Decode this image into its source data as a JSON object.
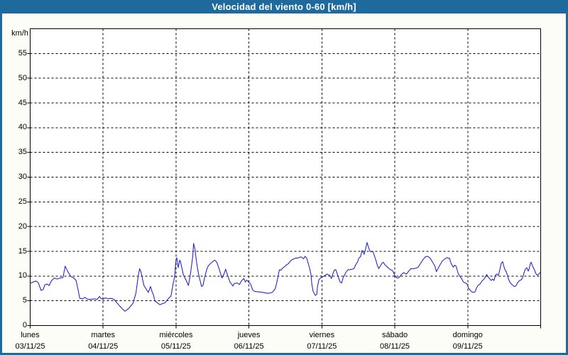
{
  "window": {
    "title": "Velocidad del viento 0-60 [km/h]"
  },
  "colors": {
    "title_bar": "#1E6A9C",
    "frame": "#1E6A9C",
    "title_text": "#FFFFFF",
    "content_bg": "#FBFDF6",
    "plot_bg": "#FFFFFF",
    "grid": "#000000",
    "axis_text": "#000000",
    "line": "#2828C8"
  },
  "chart_data": {
    "type": "line",
    "title": "Velocidad del viento 0-60 [km/h]",
    "xlabel": "",
    "ylabel": "km/h",
    "ylim": [
      0,
      60
    ],
    "yticks": [
      0,
      5,
      10,
      15,
      20,
      25,
      30,
      35,
      40,
      45,
      50,
      55
    ],
    "grid": "dashed",
    "legend_position": "none",
    "x_axis_days": [
      {
        "name": "lunes",
        "date": "03/11/25"
      },
      {
        "name": "martes",
        "date": "04/11/25"
      },
      {
        "name": "miércoles",
        "date": "05/11/25"
      },
      {
        "name": "jueves",
        "date": "06/11/25"
      },
      {
        "name": "viernes",
        "date": "07/11/25"
      },
      {
        "name": "sábado",
        "date": "08/11/25"
      },
      {
        "name": "domingo",
        "date": "09/11/25"
      }
    ],
    "series": [
      {
        "name": "velocidad del viento [km/h]",
        "x_unit": "days_from_start",
        "points": [
          [
            0.0,
            8.5
          ],
          [
            0.04,
            8.8
          ],
          [
            0.08,
            9.0
          ],
          [
            0.11,
            8.7
          ],
          [
            0.15,
            7.1
          ],
          [
            0.18,
            7.3
          ],
          [
            0.2,
            8.2
          ],
          [
            0.23,
            8.4
          ],
          [
            0.26,
            8.1
          ],
          [
            0.29,
            9.0
          ],
          [
            0.33,
            9.6
          ],
          [
            0.37,
            9.4
          ],
          [
            0.41,
            9.6
          ],
          [
            0.45,
            9.7
          ],
          [
            0.48,
            12.0
          ],
          [
            0.52,
            10.8
          ],
          [
            0.56,
            9.9
          ],
          [
            0.6,
            9.6
          ],
          [
            0.63,
            9.1
          ],
          [
            0.66,
            7.0
          ],
          [
            0.68,
            5.5
          ],
          [
            0.72,
            5.4
          ],
          [
            0.75,
            5.7
          ],
          [
            0.79,
            5.3
          ],
          [
            0.84,
            5.3
          ],
          [
            0.88,
            5.4
          ],
          [
            0.92,
            5.3
          ],
          [
            0.95,
            5.9
          ],
          [
            0.97,
            5.5
          ],
          [
            1.0,
            5.3
          ],
          [
            1.03,
            5.6
          ],
          [
            1.07,
            5.4
          ],
          [
            1.11,
            5.5
          ],
          [
            1.15,
            5.3
          ],
          [
            1.19,
            4.6
          ],
          [
            1.23,
            3.9
          ],
          [
            1.27,
            3.3
          ],
          [
            1.3,
            2.9
          ],
          [
            1.32,
            3.1
          ],
          [
            1.36,
            3.6
          ],
          [
            1.41,
            4.5
          ],
          [
            1.45,
            6.5
          ],
          [
            1.48,
            9.8
          ],
          [
            1.5,
            11.5
          ],
          [
            1.52,
            10.8
          ],
          [
            1.56,
            8.1
          ],
          [
            1.59,
            7.4
          ],
          [
            1.62,
            6.7
          ],
          [
            1.65,
            7.9
          ],
          [
            1.67,
            6.9
          ],
          [
            1.69,
            6.2
          ],
          [
            1.71,
            5.0
          ],
          [
            1.75,
            4.5
          ],
          [
            1.78,
            4.2
          ],
          [
            1.81,
            4.4
          ],
          [
            1.85,
            4.6
          ],
          [
            1.88,
            5.2
          ],
          [
            1.91,
            5.7
          ],
          [
            1.93,
            5.9
          ],
          [
            1.96,
            8.4
          ],
          [
            1.98,
            9.8
          ],
          [
            2.0,
            13.4
          ],
          [
            2.01,
            13.7
          ],
          [
            2.03,
            11.7
          ],
          [
            2.05,
            13.2
          ],
          [
            2.06,
            13.0
          ],
          [
            2.1,
            10.3
          ],
          [
            2.14,
            9.1
          ],
          [
            2.17,
            8.1
          ],
          [
            2.2,
            10.7
          ],
          [
            2.23,
            14.1
          ],
          [
            2.24,
            16.6
          ],
          [
            2.26,
            15.5
          ],
          [
            2.27,
            14.1
          ],
          [
            2.29,
            12.0
          ],
          [
            2.31,
            10.3
          ],
          [
            2.33,
            9.1
          ],
          [
            2.35,
            7.9
          ],
          [
            2.37,
            8.1
          ],
          [
            2.39,
            9.6
          ],
          [
            2.42,
            11.3
          ],
          [
            2.44,
            12.0
          ],
          [
            2.47,
            12.5
          ],
          [
            2.5,
            12.9
          ],
          [
            2.53,
            13.2
          ],
          [
            2.56,
            12.8
          ],
          [
            2.59,
            11.5
          ],
          [
            2.63,
            9.6
          ],
          [
            2.66,
            10.5
          ],
          [
            2.68,
            11.4
          ],
          [
            2.71,
            10.0
          ],
          [
            2.74,
            8.8
          ],
          [
            2.78,
            8.0
          ],
          [
            2.8,
            8.5
          ],
          [
            2.84,
            8.6
          ],
          [
            2.87,
            8.3
          ],
          [
            2.9,
            9.1
          ],
          [
            2.93,
            9.5
          ],
          [
            2.95,
            8.8
          ],
          [
            2.97,
            9.2
          ],
          [
            3.0,
            8.7
          ],
          [
            3.02,
            8.5
          ],
          [
            3.05,
            7.2
          ],
          [
            3.08,
            6.9
          ],
          [
            3.13,
            6.8
          ],
          [
            3.19,
            6.7
          ],
          [
            3.26,
            6.5
          ],
          [
            3.32,
            6.7
          ],
          [
            3.36,
            7.4
          ],
          [
            3.38,
            8.6
          ],
          [
            3.41,
            10.8
          ],
          [
            3.42,
            11.3
          ],
          [
            3.44,
            11.2
          ],
          [
            3.46,
            11.6
          ],
          [
            3.48,
            11.8
          ],
          [
            3.51,
            12.2
          ],
          [
            3.54,
            12.5
          ],
          [
            3.58,
            13.2
          ],
          [
            3.63,
            13.6
          ],
          [
            3.68,
            13.7
          ],
          [
            3.71,
            13.9
          ],
          [
            3.75,
            13.5
          ],
          [
            3.77,
            14.0
          ],
          [
            3.79,
            13.7
          ],
          [
            3.81,
            12.7
          ],
          [
            3.83,
            11.7
          ],
          [
            3.85,
            10.3
          ],
          [
            3.86,
            8.6
          ],
          [
            3.88,
            6.9
          ],
          [
            3.91,
            6.1
          ],
          [
            3.93,
            6.3
          ],
          [
            3.94,
            7.9
          ],
          [
            3.96,
            9.3
          ],
          [
            3.99,
            9.7
          ],
          [
            4.02,
            9.9
          ],
          [
            4.05,
            10.2
          ],
          [
            4.07,
            10.4
          ],
          [
            4.11,
            10.1
          ],
          [
            4.13,
            9.5
          ],
          [
            4.15,
            10.4
          ],
          [
            4.17,
            11.2
          ],
          [
            4.19,
            11.3
          ],
          [
            4.22,
            10.0
          ],
          [
            4.25,
            8.8
          ],
          [
            4.27,
            8.6
          ],
          [
            4.29,
            9.6
          ],
          [
            4.33,
            10.8
          ],
          [
            4.36,
            11.3
          ],
          [
            4.39,
            11.3
          ],
          [
            4.44,
            11.5
          ],
          [
            4.46,
            12.2
          ],
          [
            4.49,
            12.9
          ],
          [
            4.51,
            13.7
          ],
          [
            4.53,
            13.9
          ],
          [
            4.55,
            15.2
          ],
          [
            4.58,
            14.4
          ],
          [
            4.6,
            15.5
          ],
          [
            4.62,
            16.8
          ],
          [
            4.64,
            15.8
          ],
          [
            4.66,
            15.0
          ],
          [
            4.68,
            14.9
          ],
          [
            4.7,
            15.0
          ],
          [
            4.72,
            14.1
          ],
          [
            4.74,
            13.2
          ],
          [
            4.76,
            12.2
          ],
          [
            4.78,
            11.5
          ],
          [
            4.82,
            12.5
          ],
          [
            4.84,
            12.8
          ],
          [
            4.87,
            12.2
          ],
          [
            4.9,
            11.8
          ],
          [
            4.93,
            11.4
          ],
          [
            4.97,
            11.1
          ],
          [
            5.0,
            10.1
          ],
          [
            5.03,
            9.6
          ],
          [
            5.06,
            9.7
          ],
          [
            5.09,
            10.3
          ],
          [
            5.12,
            10.7
          ],
          [
            5.16,
            10.4
          ],
          [
            5.19,
            11.0
          ],
          [
            5.22,
            11.5
          ],
          [
            5.26,
            11.5
          ],
          [
            5.29,
            11.6
          ],
          [
            5.32,
            11.8
          ],
          [
            5.36,
            12.7
          ],
          [
            5.39,
            13.4
          ],
          [
            5.42,
            13.9
          ],
          [
            5.45,
            14.0
          ],
          [
            5.48,
            13.7
          ],
          [
            5.51,
            13.0
          ],
          [
            5.55,
            12.0
          ],
          [
            5.57,
            10.9
          ],
          [
            5.61,
            12.0
          ],
          [
            5.65,
            13.0
          ],
          [
            5.68,
            13.4
          ],
          [
            5.71,
            13.7
          ],
          [
            5.75,
            13.6
          ],
          [
            5.77,
            12.6
          ],
          [
            5.8,
            11.8
          ],
          [
            5.82,
            12.2
          ],
          [
            5.84,
            12.0
          ],
          [
            5.87,
            10.5
          ],
          [
            5.9,
            9.8
          ],
          [
            5.92,
            9.4
          ],
          [
            5.94,
            8.8
          ],
          [
            5.97,
            8.6
          ],
          [
            5.99,
            8.4
          ],
          [
            6.01,
            7.6
          ],
          [
            6.04,
            7.0
          ],
          [
            6.07,
            6.7
          ],
          [
            6.1,
            6.8
          ],
          [
            6.12,
            7.6
          ],
          [
            6.14,
            8.1
          ],
          [
            6.17,
            8.4
          ],
          [
            6.19,
            8.9
          ],
          [
            6.23,
            9.5
          ],
          [
            6.26,
            10.3
          ],
          [
            6.28,
            9.8
          ],
          [
            6.3,
            9.5
          ],
          [
            6.32,
            9.1
          ],
          [
            6.34,
            9.4
          ],
          [
            6.36,
            9.1
          ],
          [
            6.38,
            10.2
          ],
          [
            6.4,
            10.4
          ],
          [
            6.42,
            10.1
          ],
          [
            6.44,
            11.3
          ],
          [
            6.46,
            12.6
          ],
          [
            6.48,
            12.9
          ],
          [
            6.49,
            12.2
          ],
          [
            6.51,
            11.3
          ],
          [
            6.53,
            10.8
          ],
          [
            6.54,
            10.3
          ],
          [
            6.55,
            9.8
          ],
          [
            6.57,
            9.0
          ],
          [
            6.59,
            8.5
          ],
          [
            6.62,
            8.1
          ],
          [
            6.64,
            7.9
          ],
          [
            6.66,
            8.0
          ],
          [
            6.68,
            8.6
          ],
          [
            6.71,
            9.1
          ],
          [
            6.73,
            9.2
          ],
          [
            6.75,
            9.6
          ],
          [
            6.77,
            10.6
          ],
          [
            6.79,
            11.4
          ],
          [
            6.81,
            11.7
          ],
          [
            6.83,
            11.0
          ],
          [
            6.84,
            11.4
          ],
          [
            6.86,
            12.6
          ],
          [
            6.87,
            12.8
          ],
          [
            6.89,
            12.0
          ],
          [
            6.92,
            11.1
          ],
          [
            6.93,
            10.6
          ],
          [
            6.95,
            10.2
          ],
          [
            6.97,
            10.3
          ],
          [
            6.99,
            10.7
          ]
        ]
      }
    ]
  }
}
